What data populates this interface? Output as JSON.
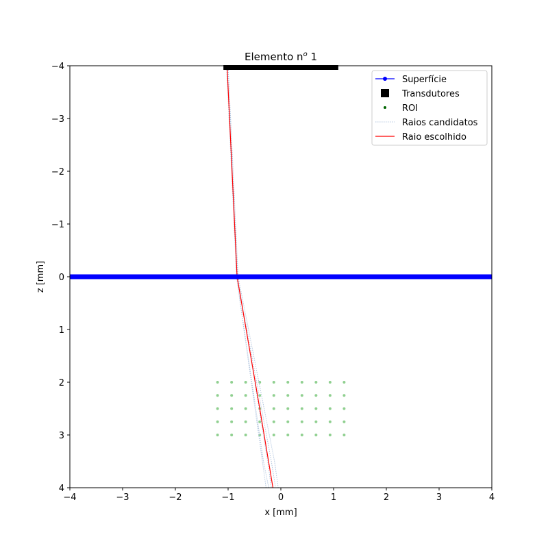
{
  "chart_data": {
    "type": "scatter",
    "title": "Elemento n",
    "title_superscript": "o",
    "title_suffix": " 1",
    "xlabel": "x [mm]",
    "ylabel": "z [mm]",
    "xlim": [
      -4,
      4
    ],
    "ylim": [
      -4,
      4
    ],
    "y_inverted": true,
    "grid": false,
    "xticks": [
      "−4",
      "−3",
      "−2",
      "−1",
      "0",
      "1",
      "2",
      "3",
      "4"
    ],
    "yticks": [
      "−4",
      "−3",
      "−2",
      "−1",
      "0",
      "1",
      "2",
      "3",
      "4"
    ],
    "legend_position": "top-right",
    "legend": [
      {
        "label": "Superfície",
        "kind": "line-marker",
        "color": "#0000ff"
      },
      {
        "label": "Transdutores",
        "kind": "square",
        "color": "#000000"
      },
      {
        "label": "ROI",
        "kind": "dot",
        "color": "#006400"
      },
      {
        "label": "Raios candidatos",
        "kind": "dotted",
        "color": "#b0c4de"
      },
      {
        "label": "Raio escolhido",
        "kind": "line",
        "color": "#ff0000"
      }
    ],
    "surface": {
      "z": 0,
      "x_range": [
        -4,
        4
      ],
      "color": "#0000ff"
    },
    "transducers": {
      "z": -4,
      "x_start": -1.05,
      "x_end": 1.05,
      "count": 64,
      "color": "#000000"
    },
    "roi": {
      "x": [
        -1.2,
        -0.933,
        -0.667,
        -0.4,
        -0.133,
        0.133,
        0.4,
        0.667,
        0.933,
        1.2
      ],
      "z": [
        2.0,
        2.25,
        2.5,
        2.75,
        3.0
      ],
      "color": "#90d090"
    },
    "chosen_ray": {
      "color": "#ff0000",
      "x": [
        -1.02,
        -0.83,
        -0.4,
        -0.15
      ],
      "z": [
        -4,
        0,
        2.5,
        4
      ]
    },
    "candidate_rays": {
      "color": "#b0c4de",
      "rays": [
        {
          "x": [
            -1.0,
            -0.84,
            -0.33,
            -0.23
          ],
          "z": [
            -4,
            0,
            3.5,
            4
          ]
        },
        {
          "x": [
            -1.0,
            -0.82,
            -0.25,
            -0.18
          ],
          "z": [
            -4,
            0,
            3.5,
            4
          ]
        },
        {
          "x": [
            -1.02,
            -0.83,
            -0.18,
            -0.1
          ],
          "z": [
            -4,
            0,
            3.5,
            4
          ]
        },
        {
          "x": [
            -1.03,
            -0.84,
            -0.42,
            -0.28
          ],
          "z": [
            -4,
            0,
            3.0,
            4
          ]
        },
        {
          "x": [
            -1.0,
            -0.81,
            -0.12,
            -0.05
          ],
          "z": [
            -4,
            0,
            3.5,
            4
          ]
        }
      ]
    }
  }
}
